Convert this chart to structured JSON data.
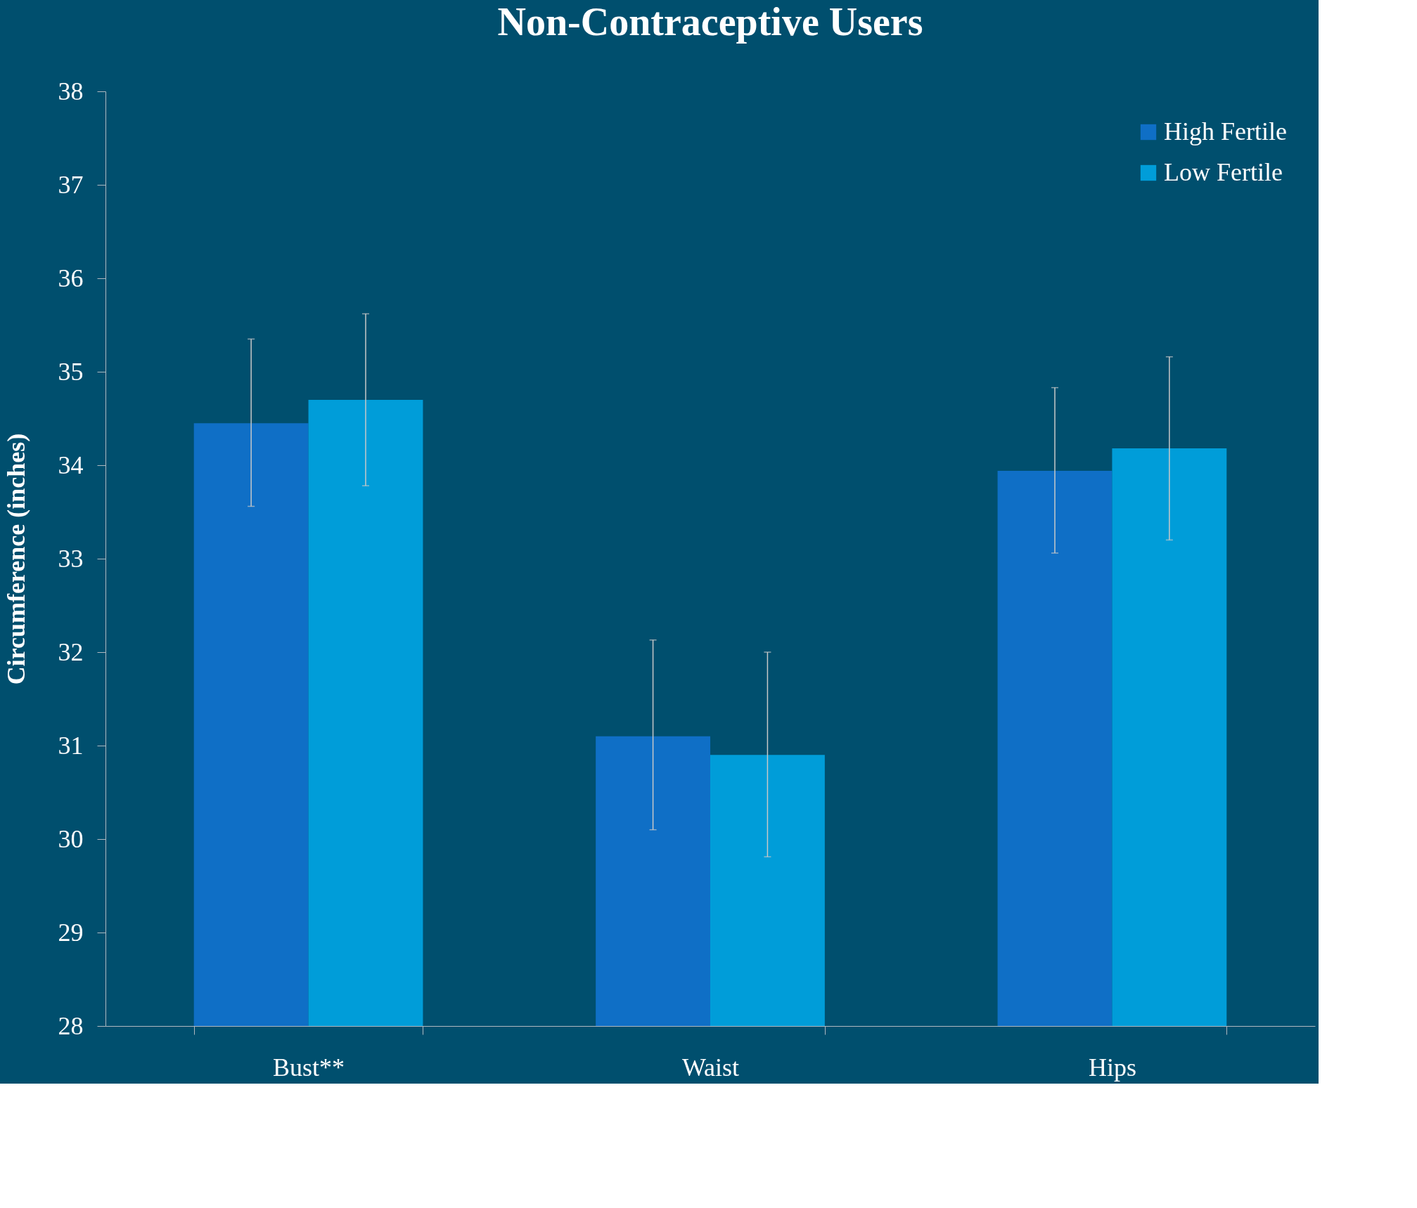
{
  "chart_data": {
    "type": "bar",
    "title": "Non-Contraceptive Users",
    "ylabel": "Circumference (inches)",
    "categories": [
      "Bust**",
      "Waist",
      "Hips"
    ],
    "series": [
      {
        "name": "High Fertile",
        "color": "#0f6fc6",
        "values": [
          34.45,
          31.1,
          33.94
        ],
        "errors": [
          [
            33.56,
            35.35
          ],
          [
            30.1,
            32.13
          ],
          [
            33.06,
            34.83
          ]
        ]
      },
      {
        "name": "Low Fertile",
        "color": "#009dd9",
        "values": [
          34.7,
          30.9,
          34.18
        ],
        "errors": [
          [
            33.78,
            35.62
          ],
          [
            29.81,
            32.0
          ],
          [
            33.2,
            35.16
          ]
        ]
      }
    ],
    "ylim": [
      28,
      38
    ],
    "yticks": [
      28,
      29,
      30,
      31,
      32,
      33,
      34,
      35,
      36,
      37,
      38
    ],
    "grid": false,
    "legend": "top right"
  }
}
